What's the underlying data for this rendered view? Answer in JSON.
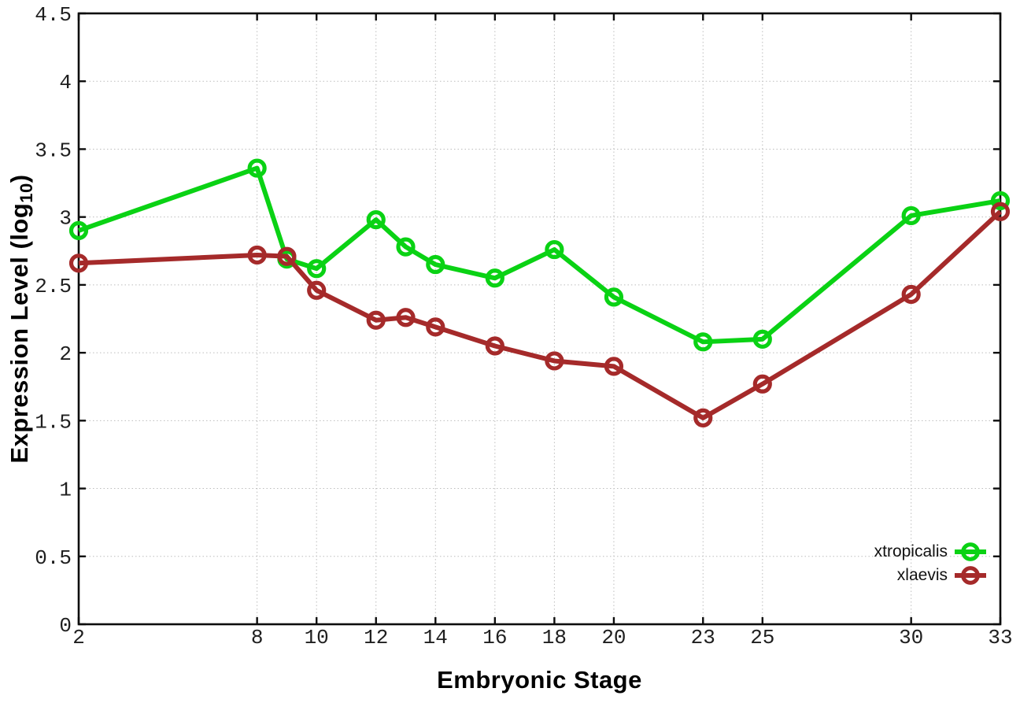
{
  "figure": {
    "background": "#ffffff"
  },
  "axis_titles": {
    "x": "Embryonic Stage",
    "y_prefix": "Expression Level (log",
    "y_sub": "10",
    "y_suffix": ")"
  },
  "legend": {
    "position": "bottom-right-inside"
  },
  "style": {
    "grid_color": "#bdbdbd",
    "grid_style": "dotted",
    "axis_color": "#0d0d0d",
    "tick_label_color": "#1f1f1f",
    "marker": "open-circle"
  },
  "chart_data": {
    "type": "line",
    "title": "",
    "xlabel": "Embryonic Stage",
    "ylabel": "Expression Level (log10)",
    "xlim": [
      2,
      33
    ],
    "ylim": [
      0,
      4.5
    ],
    "x_ticks": [
      "2",
      "8",
      "10",
      "12",
      "14",
      "16",
      "18",
      "20",
      "23",
      "25",
      "30",
      "33"
    ],
    "y_ticks": [
      "0",
      "0.5",
      "1",
      "1.5",
      "2",
      "2.5",
      "3",
      "3.5",
      "4",
      "4.5"
    ],
    "grid": "dotted",
    "legend_position": "bottom-right",
    "x": [
      2,
      8,
      9,
      10,
      12,
      13,
      14,
      16,
      18,
      20,
      23,
      25,
      30,
      33
    ],
    "series": [
      {
        "name": "xtropicalis",
        "color": "#0ad214",
        "marker": "open-circle",
        "values": [
          2.9,
          3.36,
          2.69,
          2.62,
          2.98,
          2.78,
          2.65,
          2.55,
          2.76,
          2.41,
          2.08,
          2.1,
          3.01,
          3.12
        ]
      },
      {
        "name": "xlaevis",
        "color": "#a52a2a",
        "marker": "open-circle",
        "values": [
          2.66,
          2.72,
          2.71,
          2.46,
          2.24,
          2.26,
          2.19,
          2.05,
          1.94,
          1.9,
          1.52,
          1.77,
          2.43,
          3.04
        ]
      }
    ]
  }
}
